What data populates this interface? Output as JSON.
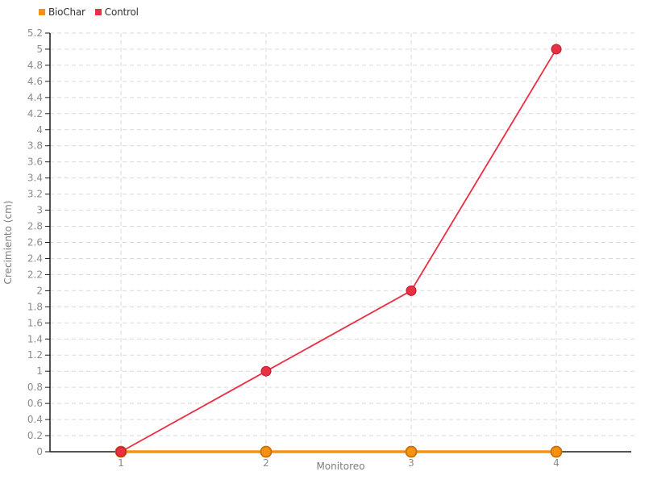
{
  "chart_data": {
    "type": "line",
    "title": "",
    "xlabel": "Monitoreo",
    "ylabel": "Crecimiento (cm)",
    "categories": [
      "1",
      "2",
      "3",
      "4"
    ],
    "series": [
      {
        "name": "BioChar",
        "color": "#f5920f",
        "marker_stroke": "#c96f08",
        "values": [
          0,
          0,
          0,
          0
        ]
      },
      {
        "name": "Control",
        "color": "#e92f42",
        "marker_stroke": "#bc1a2e",
        "values": [
          0,
          1,
          2,
          5
        ]
      }
    ],
    "ylim": [
      0,
      5.2
    ],
    "ytick_step": 0.2,
    "yticks": [
      "0",
      "0.2",
      "0.4",
      "0.6",
      "0.8",
      "1",
      "1.2",
      "1.4",
      "1.6",
      "1.8",
      "2",
      "2.2",
      "2.4",
      "2.6",
      "2.8",
      "3",
      "3.2",
      "3.4",
      "3.6",
      "3.8",
      "4",
      "4.2",
      "4.4",
      "4.6",
      "4.8",
      "5",
      "5.2"
    ],
    "grid": "dashed",
    "legend_position": "top-left",
    "colors": {
      "grid": "#d9d9d9",
      "axis": "#1a1a1a",
      "tick_label": "#8c8c8c",
      "axis_label": "#7d7d7d",
      "legend_text": "#333333",
      "background": "#ffffff"
    }
  }
}
